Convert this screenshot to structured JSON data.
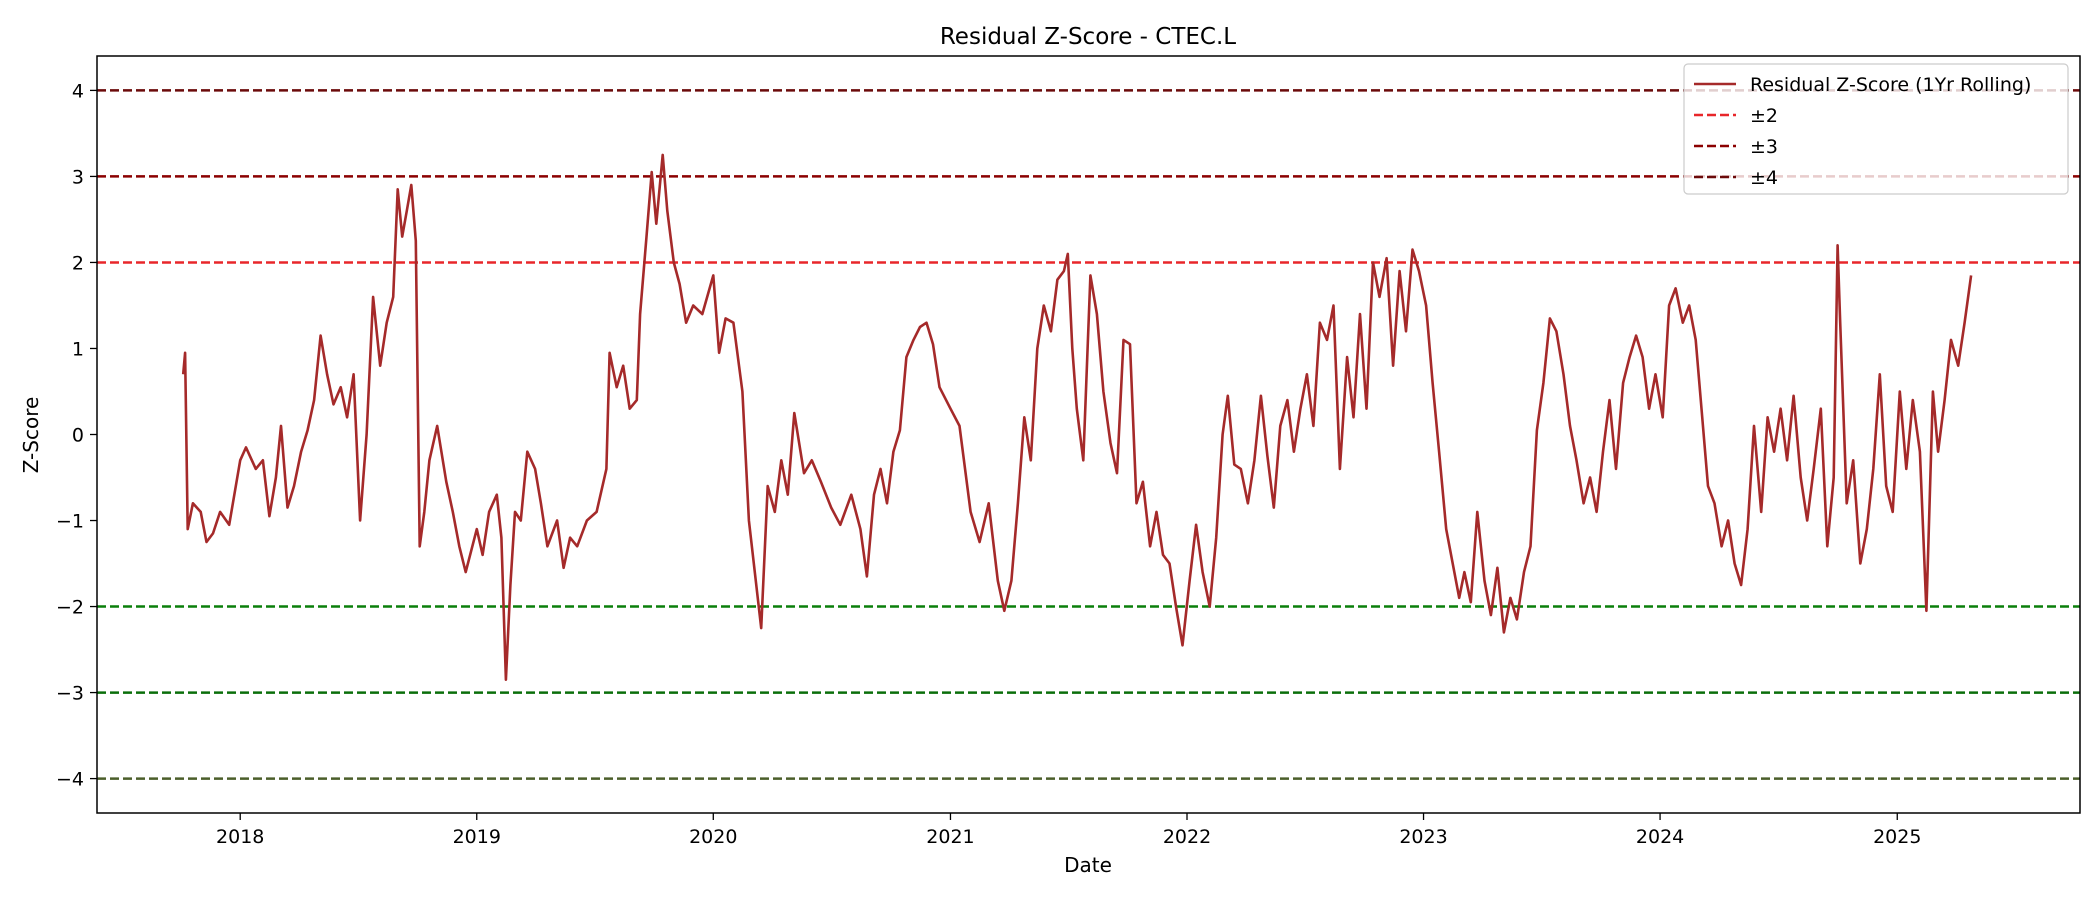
{
  "chart_data": {
    "type": "line",
    "title": "Residual Z-Score - CTEC.L",
    "xlabel": "Date",
    "ylabel": "Z-Score",
    "xlim": [
      "2017-05-25",
      "2025-10-10"
    ],
    "ylim": [
      -4.4,
      4.4
    ],
    "xticks": [
      "2018",
      "2019",
      "2020",
      "2021",
      "2022",
      "2023",
      "2024",
      "2025"
    ],
    "yticks": [
      "4",
      "3",
      "2",
      "1",
      "0",
      "−1",
      "−2",
      "−3",
      "−4"
    ],
    "ytick_values": [
      4,
      3,
      2,
      1,
      0,
      -1,
      -2,
      -3,
      -4
    ],
    "grid": false,
    "legend_position": "top-right",
    "series": [
      {
        "name": "Residual Z-Score (1Yr Rolling)",
        "color": "#a52a2a",
        "points": [
          [
            "2017-10-05",
            0.7
          ],
          [
            "2017-10-08",
            0.95
          ],
          [
            "2017-10-12",
            -1.1
          ],
          [
            "2017-10-20",
            -0.8
          ],
          [
            "2017-11-01",
            -0.9
          ],
          [
            "2017-11-10",
            -1.25
          ],
          [
            "2017-11-20",
            -1.15
          ],
          [
            "2017-12-01",
            -0.9
          ],
          [
            "2017-12-15",
            -1.05
          ],
          [
            "2018-01-01",
            -0.3
          ],
          [
            "2018-01-10",
            -0.15
          ],
          [
            "2018-01-25",
            -0.4
          ],
          [
            "2018-02-05",
            -0.3
          ],
          [
            "2018-02-15",
            -0.95
          ],
          [
            "2018-02-25",
            -0.5
          ],
          [
            "2018-03-05",
            0.1
          ],
          [
            "2018-03-15",
            -0.85
          ],
          [
            "2018-03-25",
            -0.6
          ],
          [
            "2018-04-05",
            -0.2
          ],
          [
            "2018-04-15",
            0.05
          ],
          [
            "2018-04-25",
            0.4
          ],
          [
            "2018-05-05",
            1.15
          ],
          [
            "2018-05-15",
            0.7
          ],
          [
            "2018-05-25",
            0.35
          ],
          [
            "2018-06-05",
            0.55
          ],
          [
            "2018-06-15",
            0.2
          ],
          [
            "2018-06-25",
            0.7
          ],
          [
            "2018-07-05",
            -1.0
          ],
          [
            "2018-07-15",
            0.0
          ],
          [
            "2018-07-25",
            1.6
          ],
          [
            "2018-08-05",
            0.8
          ],
          [
            "2018-08-15",
            1.3
          ],
          [
            "2018-08-25",
            1.6
          ],
          [
            "2018-09-01",
            2.85
          ],
          [
            "2018-09-08",
            2.3
          ],
          [
            "2018-09-15",
            2.6
          ],
          [
            "2018-09-22",
            2.9
          ],
          [
            "2018-09-29",
            2.25
          ],
          [
            "2018-10-05",
            -1.3
          ],
          [
            "2018-10-12",
            -0.9
          ],
          [
            "2018-10-20",
            -0.3
          ],
          [
            "2018-11-01",
            0.1
          ],
          [
            "2018-11-15",
            -0.55
          ],
          [
            "2018-11-25",
            -0.9
          ],
          [
            "2018-12-05",
            -1.3
          ],
          [
            "2018-12-15",
            -1.6
          ],
          [
            "2019-01-01",
            -1.1
          ],
          [
            "2019-01-10",
            -1.4
          ],
          [
            "2019-01-20",
            -0.9
          ],
          [
            "2019-02-01",
            -0.7
          ],
          [
            "2019-02-08",
            -1.2
          ],
          [
            "2019-02-15",
            -2.85
          ],
          [
            "2019-02-22",
            -1.75
          ],
          [
            "2019-03-01",
            -0.9
          ],
          [
            "2019-03-10",
            -1.0
          ],
          [
            "2019-03-20",
            -0.2
          ],
          [
            "2019-04-01",
            -0.4
          ],
          [
            "2019-04-10",
            -0.8
          ],
          [
            "2019-04-20",
            -1.3
          ],
          [
            "2019-05-05",
            -1.0
          ],
          [
            "2019-05-15",
            -1.55
          ],
          [
            "2019-05-25",
            -1.2
          ],
          [
            "2019-06-05",
            -1.3
          ],
          [
            "2019-06-20",
            -1.0
          ],
          [
            "2019-07-05",
            -0.9
          ],
          [
            "2019-07-20",
            -0.4
          ],
          [
            "2019-07-25",
            0.95
          ],
          [
            "2019-08-05",
            0.55
          ],
          [
            "2019-08-15",
            0.8
          ],
          [
            "2019-08-25",
            0.3
          ],
          [
            "2019-09-05",
            0.4
          ],
          [
            "2019-09-10",
            1.4
          ],
          [
            "2019-09-20",
            2.3
          ],
          [
            "2019-09-28",
            3.05
          ],
          [
            "2019-10-05",
            2.45
          ],
          [
            "2019-10-15",
            3.25
          ],
          [
            "2019-10-22",
            2.6
          ],
          [
            "2019-11-01",
            2.0
          ],
          [
            "2019-11-10",
            1.75
          ],
          [
            "2019-11-20",
            1.3
          ],
          [
            "2019-12-01",
            1.5
          ],
          [
            "2019-12-15",
            1.4
          ],
          [
            "2020-01-01",
            1.85
          ],
          [
            "2020-01-10",
            0.95
          ],
          [
            "2020-01-20",
            1.35
          ],
          [
            "2020-02-01",
            1.3
          ],
          [
            "2020-02-15",
            0.5
          ],
          [
            "2020-02-25",
            -1.0
          ],
          [
            "2020-03-05",
            -1.6
          ],
          [
            "2020-03-15",
            -2.25
          ],
          [
            "2020-03-25",
            -0.6
          ],
          [
            "2020-04-05",
            -0.9
          ],
          [
            "2020-04-15",
            -0.3
          ],
          [
            "2020-04-25",
            -0.7
          ],
          [
            "2020-05-05",
            0.25
          ],
          [
            "2020-05-20",
            -0.45
          ],
          [
            "2020-06-01",
            -0.3
          ],
          [
            "2020-06-15",
            -0.55
          ],
          [
            "2020-07-01",
            -0.85
          ],
          [
            "2020-07-15",
            -1.05
          ],
          [
            "2020-08-01",
            -0.7
          ],
          [
            "2020-08-15",
            -1.1
          ],
          [
            "2020-08-25",
            -1.65
          ],
          [
            "2020-09-05",
            -0.7
          ],
          [
            "2020-09-15",
            -0.4
          ],
          [
            "2020-09-25",
            -0.8
          ],
          [
            "2020-10-05",
            -0.2
          ],
          [
            "2020-10-15",
            0.05
          ],
          [
            "2020-10-25",
            0.9
          ],
          [
            "2020-11-05",
            1.1
          ],
          [
            "2020-11-15",
            1.25
          ],
          [
            "2020-11-25",
            1.3
          ],
          [
            "2020-12-05",
            1.05
          ],
          [
            "2020-12-15",
            0.55
          ],
          [
            "2021-01-01",
            0.3
          ],
          [
            "2021-01-15",
            0.1
          ],
          [
            "2021-02-01",
            -0.9
          ],
          [
            "2021-02-15",
            -1.25
          ],
          [
            "2021-03-01",
            -0.8
          ],
          [
            "2021-03-15",
            -1.7
          ],
          [
            "2021-03-25",
            -2.05
          ],
          [
            "2021-04-05",
            -1.7
          ],
          [
            "2021-04-15",
            -0.8
          ],
          [
            "2021-04-25",
            0.2
          ],
          [
            "2021-05-05",
            -0.3
          ],
          [
            "2021-05-15",
            1.0
          ],
          [
            "2021-05-25",
            1.5
          ],
          [
            "2021-06-05",
            1.2
          ],
          [
            "2021-06-15",
            1.8
          ],
          [
            "2021-06-25",
            1.9
          ],
          [
            "2021-07-01",
            2.1
          ],
          [
            "2021-07-08",
            1.0
          ],
          [
            "2021-07-15",
            0.3
          ],
          [
            "2021-07-25",
            -0.3
          ],
          [
            "2021-08-05",
            1.85
          ],
          [
            "2021-08-15",
            1.4
          ],
          [
            "2021-08-25",
            0.5
          ],
          [
            "2021-09-05",
            -0.1
          ],
          [
            "2021-09-15",
            -0.45
          ],
          [
            "2021-09-25",
            1.1
          ],
          [
            "2021-10-05",
            1.05
          ],
          [
            "2021-10-15",
            -0.8
          ],
          [
            "2021-10-25",
            -0.55
          ],
          [
            "2021-11-05",
            -1.3
          ],
          [
            "2021-11-15",
            -0.9
          ],
          [
            "2021-11-25",
            -1.4
          ],
          [
            "2021-12-05",
            -1.5
          ],
          [
            "2021-12-15",
            -2.0
          ],
          [
            "2021-12-25",
            -2.45
          ],
          [
            "2022-01-05",
            -1.7
          ],
          [
            "2022-01-15",
            -1.05
          ],
          [
            "2022-01-25",
            -1.6
          ],
          [
            "2022-02-05",
            -2.0
          ],
          [
            "2022-02-15",
            -1.2
          ],
          [
            "2022-02-25",
            0.0
          ],
          [
            "2022-03-05",
            0.45
          ],
          [
            "2022-03-15",
            -0.35
          ],
          [
            "2022-03-25",
            -0.4
          ],
          [
            "2022-04-05",
            -0.8
          ],
          [
            "2022-04-15",
            -0.3
          ],
          [
            "2022-04-25",
            0.45
          ],
          [
            "2022-05-05",
            -0.25
          ],
          [
            "2022-05-15",
            -0.85
          ],
          [
            "2022-05-25",
            0.1
          ],
          [
            "2022-06-05",
            0.4
          ],
          [
            "2022-06-15",
            -0.2
          ],
          [
            "2022-06-25",
            0.3
          ],
          [
            "2022-07-05",
            0.7
          ],
          [
            "2022-07-15",
            0.1
          ],
          [
            "2022-07-25",
            1.3
          ],
          [
            "2022-08-05",
            1.1
          ],
          [
            "2022-08-15",
            1.5
          ],
          [
            "2022-08-25",
            -0.4
          ],
          [
            "2022-09-05",
            0.9
          ],
          [
            "2022-09-15",
            0.2
          ],
          [
            "2022-09-25",
            1.4
          ],
          [
            "2022-10-05",
            0.3
          ],
          [
            "2022-10-15",
            2.0
          ],
          [
            "2022-10-25",
            1.6
          ],
          [
            "2022-11-05",
            2.05
          ],
          [
            "2022-11-15",
            0.8
          ],
          [
            "2022-11-25",
            1.9
          ],
          [
            "2022-12-05",
            1.2
          ],
          [
            "2022-12-15",
            2.15
          ],
          [
            "2022-12-25",
            1.9
          ],
          [
            "2023-01-05",
            1.5
          ],
          [
            "2023-01-15",
            0.6
          ],
          [
            "2023-01-25",
            -0.2
          ],
          [
            "2023-02-05",
            -1.1
          ],
          [
            "2023-02-15",
            -1.5
          ],
          [
            "2023-02-25",
            -1.9
          ],
          [
            "2023-03-05",
            -1.6
          ],
          [
            "2023-03-15",
            -1.95
          ],
          [
            "2023-03-25",
            -0.9
          ],
          [
            "2023-04-05",
            -1.7
          ],
          [
            "2023-04-15",
            -2.1
          ],
          [
            "2023-04-25",
            -1.55
          ],
          [
            "2023-05-05",
            -2.3
          ],
          [
            "2023-05-15",
            -1.9
          ],
          [
            "2023-05-25",
            -2.15
          ],
          [
            "2023-06-05",
            -1.6
          ],
          [
            "2023-06-15",
            -1.3
          ],
          [
            "2023-06-25",
            0.05
          ],
          [
            "2023-07-05",
            0.6
          ],
          [
            "2023-07-15",
            1.35
          ],
          [
            "2023-07-25",
            1.2
          ],
          [
            "2023-08-05",
            0.7
          ],
          [
            "2023-08-15",
            0.1
          ],
          [
            "2023-08-25",
            -0.3
          ],
          [
            "2023-09-05",
            -0.8
          ],
          [
            "2023-09-15",
            -0.5
          ],
          [
            "2023-09-25",
            -0.9
          ],
          [
            "2023-10-05",
            -0.2
          ],
          [
            "2023-10-15",
            0.4
          ],
          [
            "2023-10-25",
            -0.4
          ],
          [
            "2023-11-05",
            0.6
          ],
          [
            "2023-11-15",
            0.9
          ],
          [
            "2023-11-25",
            1.15
          ],
          [
            "2023-12-05",
            0.9
          ],
          [
            "2023-12-15",
            0.3
          ],
          [
            "2023-12-25",
            0.7
          ],
          [
            "2024-01-05",
            0.2
          ],
          [
            "2024-01-15",
            1.5
          ],
          [
            "2024-01-25",
            1.7
          ],
          [
            "2024-02-05",
            1.3
          ],
          [
            "2024-02-15",
            1.5
          ],
          [
            "2024-02-25",
            1.1
          ],
          [
            "2024-03-05",
            0.3
          ],
          [
            "2024-03-15",
            -0.6
          ],
          [
            "2024-03-25",
            -0.8
          ],
          [
            "2024-04-05",
            -1.3
          ],
          [
            "2024-04-15",
            -1.0
          ],
          [
            "2024-04-25",
            -1.5
          ],
          [
            "2024-05-05",
            -1.75
          ],
          [
            "2024-05-15",
            -1.1
          ],
          [
            "2024-05-25",
            0.1
          ],
          [
            "2024-06-05",
            -0.9
          ],
          [
            "2024-06-15",
            0.2
          ],
          [
            "2024-06-25",
            -0.2
          ],
          [
            "2024-07-05",
            0.3
          ],
          [
            "2024-07-15",
            -0.3
          ],
          [
            "2024-07-25",
            0.45
          ],
          [
            "2024-08-05",
            -0.5
          ],
          [
            "2024-08-15",
            -1.0
          ],
          [
            "2024-08-25",
            -0.4
          ],
          [
            "2024-09-05",
            0.3
          ],
          [
            "2024-09-15",
            -1.3
          ],
          [
            "2024-09-25",
            -0.5
          ],
          [
            "2024-10-01",
            2.2
          ],
          [
            "2024-10-05",
            1.3
          ],
          [
            "2024-10-15",
            -0.8
          ],
          [
            "2024-10-25",
            -0.3
          ],
          [
            "2024-11-05",
            -1.5
          ],
          [
            "2024-11-15",
            -1.1
          ],
          [
            "2024-11-25",
            -0.4
          ],
          [
            "2024-12-05",
            0.7
          ],
          [
            "2024-12-15",
            -0.6
          ],
          [
            "2024-12-25",
            -0.9
          ],
          [
            "2025-01-05",
            0.5
          ],
          [
            "2025-01-15",
            -0.4
          ],
          [
            "2025-01-25",
            0.4
          ],
          [
            "2025-02-05",
            -0.2
          ],
          [
            "2025-02-15",
            -2.05
          ],
          [
            "2025-02-25",
            0.5
          ],
          [
            "2025-03-05",
            -0.2
          ],
          [
            "2025-03-15",
            0.4
          ],
          [
            "2025-03-25",
            1.1
          ],
          [
            "2025-04-05",
            0.8
          ],
          [
            "2025-04-15",
            1.3
          ],
          [
            "2025-04-25",
            1.85
          ]
        ]
      },
      {
        "name": "±2",
        "color": "#e8262a",
        "levels": [
          2
        ],
        "style": "dashed"
      },
      {
        "name": "±3",
        "color": "#8b0000",
        "levels": [
          3
        ],
        "style": "dashed"
      },
      {
        "name": "±4",
        "color": "#6b0a0a",
        "levels": [
          4
        ],
        "style": "dashed"
      }
    ],
    "lower_bands": [
      {
        "level": -2,
        "color": "#0a7f0a"
      },
      {
        "level": -3,
        "color": "#0a6e0a"
      },
      {
        "level": -4,
        "color": "#4b5e2a"
      }
    ]
  }
}
